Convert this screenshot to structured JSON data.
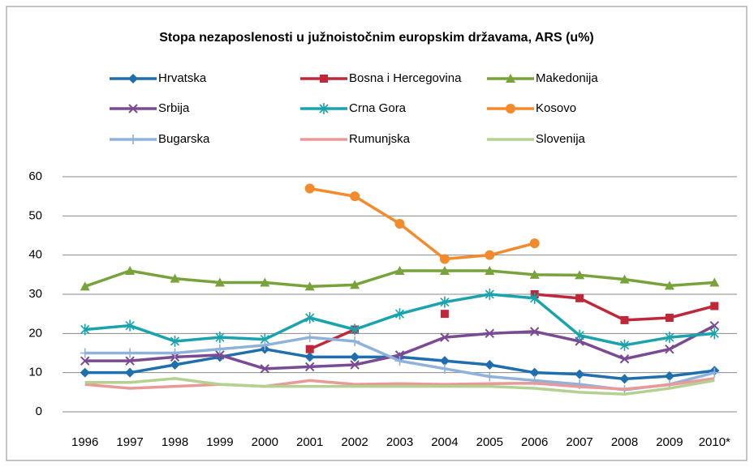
{
  "chart_data": {
    "type": "line",
    "title": "Stopa  nezaposlenosti u  južnoistočnim europskim državama, ARS (u%)",
    "categories": [
      "1996",
      "1997",
      "1998",
      "1999",
      "2000",
      "2001",
      "2002",
      "2003",
      "2004",
      "2005",
      "2006",
      "2007",
      "2008",
      "2009",
      "2010*"
    ],
    "ylim": [
      0,
      60
    ],
    "yticks": [
      0,
      10,
      20,
      30,
      40,
      50,
      60
    ],
    "grid": true,
    "series": [
      {
        "name": "Hrvatska",
        "color": "#1f6fae",
        "marker": "diamond",
        "values": [
          10,
          10,
          12,
          14,
          16,
          14,
          14,
          14,
          13,
          12,
          10,
          9.6,
          8.4,
          9.1,
          10.5
        ]
      },
      {
        "name": "Bosna i Hercegovina",
        "color": "#c0283a",
        "marker": "square",
        "values": [
          null,
          null,
          null,
          null,
          null,
          16,
          21,
          null,
          25,
          null,
          30,
          29,
          23.4,
          24,
          27
        ]
      },
      {
        "name": "Makedonija",
        "color": "#77a33a",
        "marker": "triangle",
        "values": [
          32,
          36,
          34,
          33,
          33,
          32,
          32.4,
          36,
          36,
          36,
          35,
          34.9,
          33.8,
          32.2,
          33
        ]
      },
      {
        "name": "Srbija",
        "color": "#7a4a93",
        "marker": "x",
        "values": [
          13,
          13,
          14,
          14.5,
          11,
          11.5,
          12,
          14.5,
          19,
          20,
          20.5,
          18,
          13.5,
          16,
          22
        ]
      },
      {
        "name": "Crna Gora",
        "color": "#1aa3ad",
        "marker": "star",
        "values": [
          21,
          22,
          18,
          19,
          18.5,
          24,
          21,
          25,
          28,
          30,
          29,
          19.5,
          17,
          19,
          20
        ]
      },
      {
        "name": "Kosovo",
        "color": "#f38b2c",
        "marker": "circle",
        "values": [
          null,
          null,
          null,
          null,
          null,
          57,
          55,
          48,
          39,
          40,
          43,
          null,
          null,
          null,
          null
        ]
      },
      {
        "name": "Bugarska",
        "color": "#8fb2da",
        "marker": "plus",
        "values": [
          15,
          15,
          15,
          16,
          17,
          19,
          18,
          13,
          11,
          9,
          8,
          7,
          5.6,
          7,
          10
        ]
      },
      {
        "name": "Rumunjska",
        "color": "#e99a98",
        "marker": "none",
        "values": [
          7,
          6,
          6.5,
          7,
          6.5,
          8,
          7,
          7.2,
          7,
          7.2,
          7.3,
          6.4,
          5.8,
          6.9,
          8.5
        ]
      },
      {
        "name": "Slovenija",
        "color": "#b5d192",
        "marker": "none",
        "values": [
          7.5,
          7.5,
          8.5,
          7,
          6.5,
          6.5,
          6.5,
          6.5,
          6.5,
          6.5,
          6,
          5,
          4.5,
          6,
          8
        ]
      }
    ]
  }
}
